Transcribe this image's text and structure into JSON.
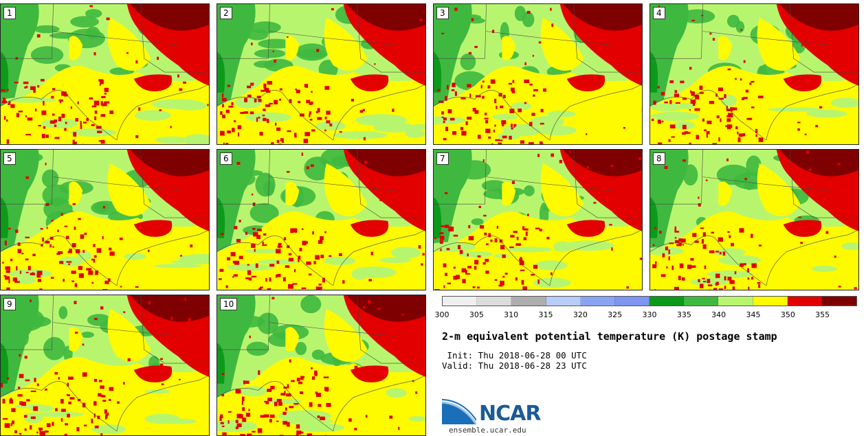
{
  "panels": [
    {
      "label": "1"
    },
    {
      "label": "2"
    },
    {
      "label": "3"
    },
    {
      "label": "4"
    },
    {
      "label": "5"
    },
    {
      "label": "6"
    },
    {
      "label": "7"
    },
    {
      "label": "8"
    },
    {
      "label": "9"
    },
    {
      "label": "10"
    }
  ],
  "colorbar": {
    "ticks": [
      "300",
      "305",
      "310",
      "315",
      "320",
      "325",
      "330",
      "335",
      "340",
      "345",
      "350",
      "355"
    ],
    "colors": [
      "#efefef",
      "#dcdcdc",
      "#aeaeae",
      "#b8ccf8",
      "#8aa4f4",
      "#7d94f0",
      "#0c9a1a",
      "#3fb83f",
      "#b8f56e",
      "#fefa00",
      "#e20000",
      "#7f0000"
    ]
  },
  "title": "2-m equivalent potential temperature (K) postage stamp",
  "init": " Init: Thu 2018-06-28 00 UTC",
  "valid": "Valid: Thu 2018-06-28 23 UTC",
  "logo": {
    "text": "NCAR",
    "url": "ensemble.ucar.edu"
  }
}
